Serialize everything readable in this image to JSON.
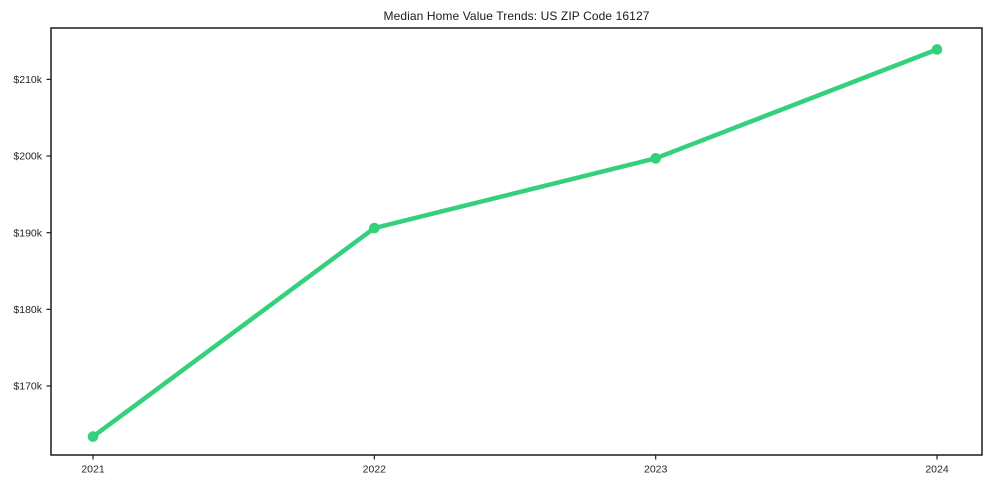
{
  "chart_data": {
    "type": "line",
    "title": "Median Home Value Trends: US ZIP Code 16127",
    "xlabel": "",
    "ylabel": "",
    "categories": [
      "2021",
      "2022",
      "2023",
      "2024"
    ],
    "series": [
      {
        "name": "Median Home Value",
        "values": [
          163400,
          190600,
          199700,
          213900
        ],
        "color": "#34d07c",
        "marker": "circle"
      }
    ],
    "yticks": [
      {
        "value": 170000,
        "label": "$170k"
      },
      {
        "value": 180000,
        "label": "$180k"
      },
      {
        "value": 190000,
        "label": "$190k"
      },
      {
        "value": 200000,
        "label": "$200k"
      },
      {
        "value": 210000,
        "label": "$210k"
      }
    ],
    "xtick_labels": [
      "2021",
      "2022",
      "2023",
      "2024"
    ],
    "ylim": [
      161000,
      216700
    ],
    "grid": false,
    "legend_position": "none"
  },
  "colors": {
    "line": "#34d07c",
    "axis": "#1c1c1c",
    "tick_text": "#262626",
    "title_text": "#1a1a1a",
    "background": "#ffffff"
  }
}
